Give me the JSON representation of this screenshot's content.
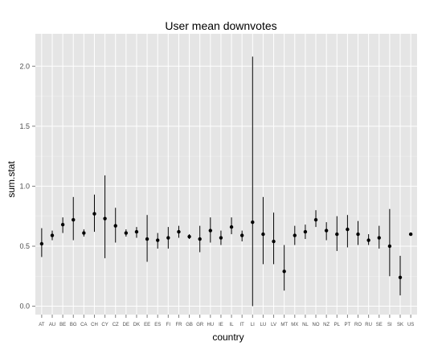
{
  "chart_data": {
    "type": "scatter",
    "title": "User mean downvotes",
    "xlabel": "country",
    "ylabel": "sum.stat",
    "ylim": [
      -0.07,
      2.27
    ],
    "yticks": [
      0.0,
      0.5,
      1.0,
      1.5,
      2.0
    ],
    "ytick_labels": [
      "0.0",
      "0.5",
      "1.0",
      "1.5",
      "2.0"
    ],
    "grid": true,
    "categories": [
      "AT",
      "AU",
      "BE",
      "BG",
      "CA",
      "CH",
      "CY",
      "CZ",
      "DE",
      "DK",
      "EE",
      "ES",
      "FI",
      "FR",
      "GB",
      "GR",
      "HU",
      "IE",
      "IL",
      "IT",
      "LI",
      "LU",
      "LV",
      "MT",
      "MX",
      "NL",
      "NO",
      "NZ",
      "PL",
      "PT",
      "RO",
      "RU",
      "SE",
      "SI",
      "SK",
      "US"
    ],
    "series": [
      {
        "mean": [
          0.52,
          0.59,
          0.68,
          0.72,
          0.61,
          0.77,
          0.73,
          0.67,
          0.61,
          0.62,
          0.56,
          0.55,
          0.57,
          0.62,
          0.58,
          0.56,
          0.63,
          0.57,
          0.66,
          0.59,
          0.7,
          0.6,
          0.54,
          0.29,
          0.59,
          0.62,
          0.72,
          0.63,
          0.6,
          0.64,
          0.6,
          0.55,
          0.57,
          0.5,
          0.24,
          0.6
        ],
        "lower": [
          0.41,
          0.55,
          0.61,
          0.55,
          0.58,
          0.62,
          0.4,
          0.53,
          0.58,
          0.57,
          0.37,
          0.48,
          0.48,
          0.57,
          0.56,
          0.45,
          0.53,
          0.51,
          0.6,
          0.54,
          0.0,
          0.35,
          0.35,
          0.13,
          0.51,
          0.56,
          0.66,
          0.55,
          0.46,
          0.49,
          0.51,
          0.51,
          0.48,
          0.25,
          0.09,
          0.6
        ],
        "upper": [
          0.65,
          0.63,
          0.74,
          0.91,
          0.64,
          0.93,
          1.09,
          0.82,
          0.64,
          0.66,
          0.76,
          0.61,
          0.66,
          0.67,
          0.6,
          0.67,
          0.74,
          0.63,
          0.74,
          0.63,
          2.08,
          0.91,
          0.78,
          0.51,
          0.67,
          0.68,
          0.8,
          0.7,
          0.75,
          0.76,
          0.71,
          0.6,
          0.67,
          0.81,
          0.42,
          0.6
        ]
      }
    ],
    "colors": {
      "panel_bg": "#e5e5e5",
      "grid_major": "#ffffff",
      "grid_minor": "#f2f2f2",
      "marks": "#000000",
      "tick_text": "#4d4d4d"
    }
  }
}
